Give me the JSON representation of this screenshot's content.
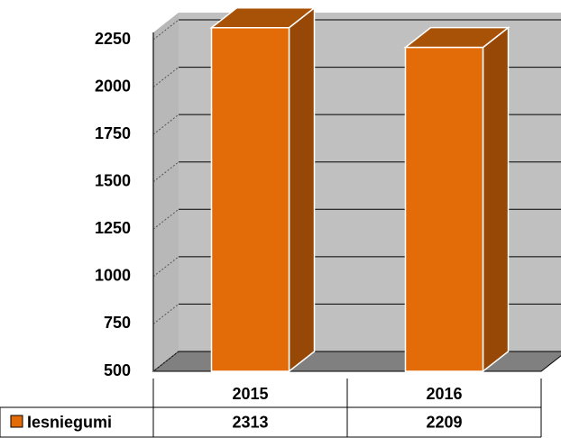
{
  "chart_data": {
    "type": "bar",
    "categories": [
      "2015",
      "2016"
    ],
    "series": [
      {
        "name": "Iesniegumi",
        "color": "#e36c09",
        "values": [
          2313,
          2209
        ]
      }
    ],
    "ylim": [
      500,
      2250
    ],
    "yticks": [
      500,
      750,
      1000,
      1250,
      1500,
      1750,
      2000,
      2250
    ],
    "grid": true
  }
}
